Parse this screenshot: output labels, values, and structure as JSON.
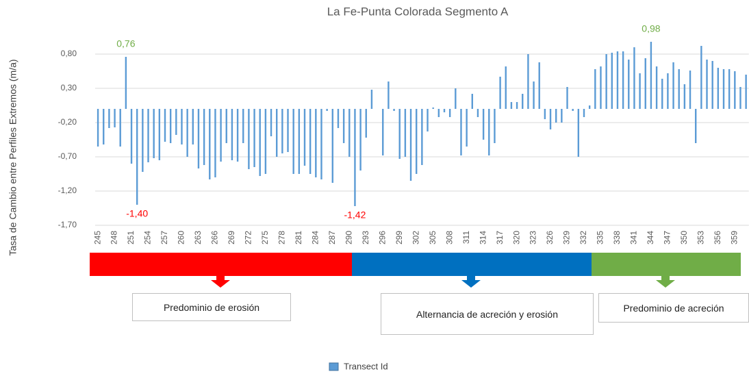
{
  "chart_data": {
    "type": "bar",
    "title": "La Fe-Punta Colorada Segmento A",
    "y_label": "Tasa de Cambio entre Perfiles Extremos  (m/a)",
    "annotations": [
      "Predominio de erosión",
      "Alternancia de acreción y erosión",
      "Predominio de acreción"
    ],
    "categories": [
      "245",
      null,
      null,
      "248",
      null,
      null,
      "251",
      null,
      null,
      "254",
      null,
      null,
      "257",
      null,
      null,
      "260",
      null,
      null,
      "263",
      null,
      null,
      "266",
      null,
      null,
      "269",
      null,
      null,
      "272",
      null,
      null,
      "275",
      null,
      null,
      "278",
      null,
      null,
      "281",
      null,
      null,
      "284",
      null,
      null,
      "287",
      null,
      null,
      "290",
      null,
      null,
      "293",
      null,
      null,
      "296",
      null,
      null,
      "299",
      null,
      null,
      "302",
      null,
      null,
      "305",
      null,
      null,
      "308",
      null,
      null,
      "311",
      null,
      null,
      "314",
      null,
      null,
      "317",
      null,
      null,
      "320",
      null,
      null,
      "323",
      null,
      null,
      "326",
      null,
      null,
      "329",
      null,
      null,
      "332",
      null,
      null,
      "335",
      null,
      null,
      "338",
      null,
      null,
      "341",
      null,
      null,
      "344",
      null,
      null,
      "347",
      null,
      null,
      "350",
      null,
      null,
      "353",
      null,
      null,
      "356",
      null,
      null,
      "359",
      null,
      null
    ],
    "series": [
      {
        "name": "Transect Id",
        "color": "#5b9bd5",
        "values": [
          -0.55,
          -0.52,
          -0.28,
          -0.27,
          -0.55,
          0.76,
          -0.8,
          -1.4,
          -0.92,
          -0.78,
          -0.72,
          -0.75,
          -0.48,
          -0.5,
          -0.38,
          -0.52,
          -0.7,
          -0.52,
          -0.87,
          -0.82,
          -1.03,
          -1.0,
          -0.77,
          -0.5,
          -0.75,
          -0.77,
          -0.5,
          -0.88,
          -0.85,
          -0.98,
          -0.95,
          -0.4,
          -0.7,
          -0.65,
          -0.63,
          -0.95,
          -0.95,
          -0.83,
          -0.95,
          -1.0,
          -1.03,
          -0.03,
          -1.08,
          -0.28,
          -0.5,
          -0.7,
          -1.42,
          -0.9,
          -0.42,
          0.28,
          0,
          -0.68,
          0.4,
          -0.03,
          -0.73,
          -0.7,
          -1.05,
          -0.95,
          -0.82,
          -0.33,
          0.02,
          -0.12,
          -0.05,
          -0.12,
          0.3,
          -0.68,
          -0.55,
          0.22,
          -0.12,
          -0.45,
          -0.68,
          -0.5,
          0.47,
          0.62,
          0.1,
          0.1,
          0.22,
          0.8,
          0.4,
          0.68,
          -0.15,
          -0.3,
          -0.2,
          -0.2,
          0.32,
          -0.03,
          -0.7,
          -0.12,
          0.05,
          0.58,
          0.62,
          0.8,
          0.82,
          0.84,
          0.84,
          0.72,
          0.9,
          0.52,
          0.74,
          0.98,
          0.62,
          0.44,
          0.52,
          0.68,
          0.58,
          0.36,
          0.56,
          -0.5,
          0.92,
          0.72,
          0.7,
          0.6,
          0.58,
          0.58,
          0.55,
          0.32,
          0.5
        ],
        "value_labels": [
          null,
          null,
          null,
          null,
          null,
          "0,76",
          null,
          "-1,40",
          null,
          null,
          null,
          null,
          null,
          null,
          null,
          null,
          null,
          null,
          null,
          null,
          null,
          null,
          null,
          null,
          null,
          null,
          null,
          null,
          null,
          null,
          null,
          null,
          null,
          null,
          null,
          null,
          null,
          null,
          null,
          null,
          null,
          null,
          null,
          null,
          null,
          null,
          "-1,42",
          null,
          null,
          null,
          null,
          null,
          null,
          null,
          null,
          null,
          null,
          null,
          null,
          null,
          null,
          null,
          null,
          null,
          null,
          null,
          null,
          null,
          null,
          null,
          null,
          null,
          null,
          null,
          null,
          null,
          null,
          null,
          null,
          null,
          null,
          null,
          null,
          null,
          null,
          null,
          null,
          null,
          null,
          null,
          null,
          null,
          null,
          null,
          null,
          null,
          null,
          null,
          null,
          "0,98",
          null,
          null,
          null,
          null,
          null,
          null,
          null,
          null,
          null,
          null,
          null,
          null,
          null,
          null,
          null,
          null,
          null
        ]
      }
    ],
    "ylim": [
      -1.7,
      1.0
    ],
    "yticks": [
      {
        "value": -1.7,
        "label": "-1,70"
      },
      {
        "value": -1.2,
        "label": "-1,20"
      },
      {
        "value": -0.7,
        "label": "-0,70"
      },
      {
        "value": -0.2,
        "label": "-0,20"
      },
      {
        "value": 0.3,
        "label": "0,30"
      },
      {
        "value": 0.8,
        "label": "0,80"
      }
    ],
    "grid": true
  }
}
